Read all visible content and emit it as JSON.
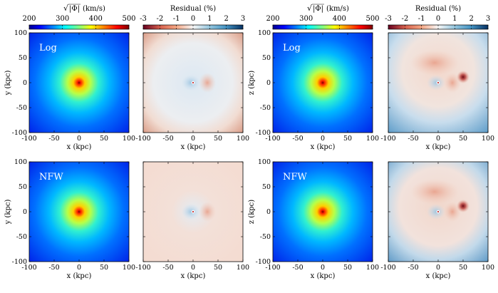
{
  "chart_data": {
    "type": "heatmap",
    "colorbars": [
      {
        "label_root": "√",
        "label_arg": "|Φ|",
        "label_unit": "(km/s)",
        "ticks": [
          "200",
          "300",
          "400",
          "500"
        ],
        "range": [
          200,
          500
        ],
        "cmap": "jet"
      },
      {
        "label": "Residual (%)",
        "ticks": [
          "-3",
          "-2",
          "-1",
          "0",
          "1",
          "2",
          "3"
        ],
        "range": [
          -3,
          3
        ],
        "cmap": "RdBu"
      },
      {
        "label_root": "√",
        "label_arg": "|Φ|",
        "label_unit": "(km/s)",
        "ticks": [
          "200",
          "300",
          "400",
          "500"
        ],
        "range": [
          200,
          500
        ],
        "cmap": "jet"
      },
      {
        "label": "Residual (%)",
        "ticks": [
          "-3",
          "-2",
          "-1",
          "0",
          "1",
          "2",
          "3"
        ],
        "range": [
          -3,
          3
        ],
        "cmap": "RdBu"
      }
    ],
    "panels": [
      {
        "id": "log-xy-potential",
        "kind": "potential",
        "annotation": "Log",
        "xlabel": "x (kpc)",
        "ylabel": "y (kpc)",
        "xlim": [
          -100,
          100
        ],
        "ylim": [
          -100,
          100
        ],
        "ticks": [
          "-100",
          "-50",
          "0",
          "50",
          "100"
        ]
      },
      {
        "id": "log-xy-residual",
        "kind": "residual",
        "annotation": "",
        "xlabel": "x (kpc)",
        "ylabel": "",
        "xlim": [
          -100,
          100
        ],
        "ylim": [
          -100,
          100
        ],
        "ticks": [
          "-100",
          "-50",
          "0",
          "50",
          "100"
        ]
      },
      {
        "id": "log-xz-potential",
        "kind": "potential",
        "annotation": "Log",
        "xlabel": "x (kpc)",
        "ylabel": "z (kpc)",
        "xlim": [
          -100,
          100
        ],
        "ylim": [
          -100,
          100
        ],
        "ticks": [
          "-100",
          "-50",
          "0",
          "50",
          "100"
        ]
      },
      {
        "id": "log-xz-residual",
        "kind": "residual",
        "annotation": "",
        "xlabel": "x (kpc)",
        "ylabel": "",
        "xlim": [
          -100,
          100
        ],
        "ylim": [
          -100,
          100
        ],
        "ticks": [
          "-100",
          "-50",
          "0",
          "50",
          "100"
        ]
      },
      {
        "id": "nfw-xy-potential",
        "kind": "potential",
        "annotation": "NFW",
        "xlabel": "x (kpc)",
        "ylabel": "y (kpc)",
        "xlim": [
          -100,
          100
        ],
        "ylim": [
          -100,
          100
        ],
        "ticks": [
          "-100",
          "-50",
          "0",
          "50",
          "100"
        ]
      },
      {
        "id": "nfw-xy-residual",
        "kind": "residual",
        "annotation": "",
        "xlabel": "x (kpc)",
        "ylabel": "",
        "xlim": [
          -100,
          100
        ],
        "ylim": [
          -100,
          100
        ],
        "ticks": [
          "-100",
          "-50",
          "0",
          "50",
          "100"
        ]
      },
      {
        "id": "nfw-xz-potential",
        "kind": "potential",
        "annotation": "NFW",
        "xlabel": "x (kpc)",
        "ylabel": "z (kpc)",
        "xlim": [
          -100,
          100
        ],
        "ylim": [
          -100,
          100
        ],
        "ticks": [
          "-100",
          "-50",
          "0",
          "50",
          "100"
        ]
      },
      {
        "id": "nfw-xz-residual",
        "kind": "residual",
        "annotation": "",
        "xlabel": "x (kpc)",
        "ylabel": "",
        "xlim": [
          -100,
          100
        ],
        "ylim": [
          -100,
          100
        ],
        "ticks": [
          "-100",
          "-50",
          "0",
          "50",
          "100"
        ]
      }
    ]
  }
}
